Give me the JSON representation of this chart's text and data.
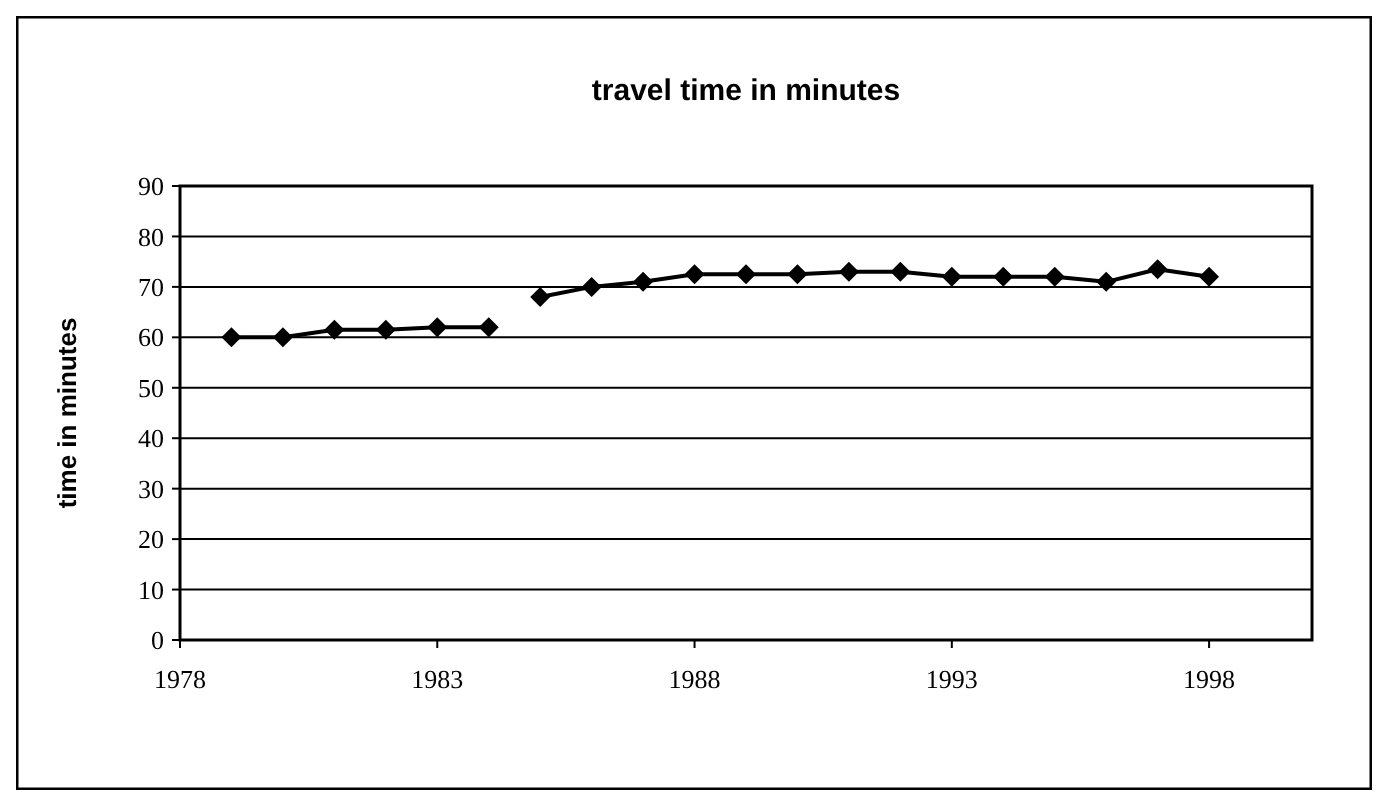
{
  "chart_data": {
    "type": "line",
    "title": "travel time in minutes",
    "ylabel": "time in minutes",
    "xlim": [
      1978,
      2000
    ],
    "xticks": [
      1978,
      1983,
      1988,
      1993,
      1998
    ],
    "ylim": [
      0,
      90
    ],
    "yticks": [
      0,
      10,
      20,
      30,
      40,
      50,
      60,
      70,
      80,
      90
    ],
    "grid": "y",
    "marker": "diamond",
    "line_style": "solid",
    "series": [
      {
        "color": "#000000",
        "x": [
          1979,
          1980,
          1981,
          1982,
          1983,
          1984
        ],
        "values": [
          60,
          60,
          61.5,
          61.5,
          62,
          62
        ]
      },
      {
        "color": "#000000",
        "x": [
          1985,
          1986,
          1987,
          1988,
          1989,
          1990,
          1991,
          1992,
          1993,
          1994,
          1995,
          1996,
          1997,
          1998
        ],
        "values": [
          68,
          70,
          71,
          72.5,
          72.5,
          72.5,
          73,
          73,
          72,
          72,
          72,
          71,
          73.5,
          72
        ]
      }
    ]
  }
}
